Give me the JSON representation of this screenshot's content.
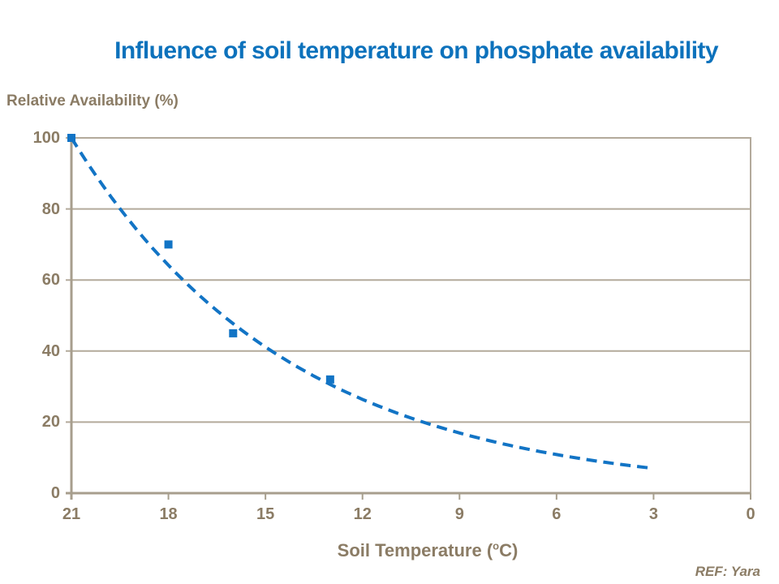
{
  "title": {
    "text": "Influence of soil temperature on phosphate availability"
  },
  "chart_data": {
    "type": "scatter",
    "title": "Influence of soil temperature on phosphate availability",
    "ylabel": "Relative Availability (%)",
    "xlabel": "Soil Temperature (oC)",
    "xlabel_parts": {
      "prefix": "Soil Temperature (",
      "sup": "o",
      "suffix": "C)"
    },
    "x_ticks": [
      21,
      18,
      15,
      12,
      9,
      6,
      3,
      0
    ],
    "y_ticks": [
      0,
      20,
      40,
      60,
      80,
      100
    ],
    "xlim": [
      21,
      0
    ],
    "ylim": [
      0,
      100
    ],
    "x_axis_reversed": true,
    "grid": "horizontal",
    "legend": "none",
    "points": [
      {
        "x": 21,
        "y": 100
      },
      {
        "x": 18,
        "y": 70
      },
      {
        "x": 16,
        "y": 45
      },
      {
        "x": 13,
        "y": 32
      }
    ],
    "trend_curve": {
      "style": "dashed",
      "formula": "y = 100 * exp(-0.148 * (21 - x))",
      "base": 100,
      "k": 0.148,
      "x_start": 21,
      "x_end": 3,
      "y_at_end": 7
    },
    "colors": {
      "title": "#0d72bc",
      "series": "#1274c5",
      "grid": "#b3aa9b",
      "axis": "#a79e8d",
      "labels": "#8b7c65"
    }
  },
  "footer": {
    "ref": "REF: Yara"
  }
}
